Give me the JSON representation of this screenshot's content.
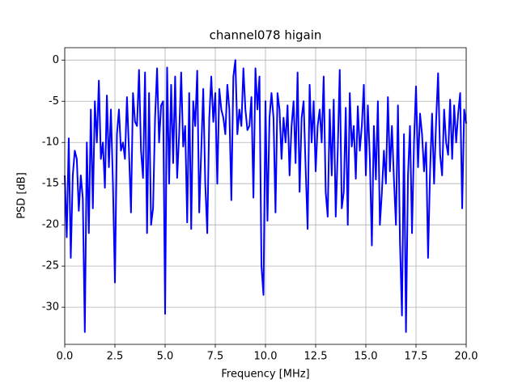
{
  "chart_data": {
    "type": "line",
    "title": "channel078 higain",
    "xlabel": "Frequency [MHz]",
    "ylabel": "PSD [dB]",
    "x": [
      0.0,
      0.1,
      0.2,
      0.3,
      0.4,
      0.5,
      0.6,
      0.7,
      0.8,
      0.9,
      1.0,
      1.1,
      1.2,
      1.3,
      1.4,
      1.5,
      1.6,
      1.7,
      1.8,
      1.9,
      2.0,
      2.1,
      2.2,
      2.3,
      2.4,
      2.5,
      2.6,
      2.7,
      2.8,
      2.9,
      3.0,
      3.1,
      3.2,
      3.3,
      3.4,
      3.5,
      3.6,
      3.7,
      3.8,
      3.9,
      4.0,
      4.1,
      4.2,
      4.3,
      4.4,
      4.5,
      4.6,
      4.7,
      4.8,
      4.9,
      5.0,
      5.1,
      5.2,
      5.3,
      5.4,
      5.5,
      5.6,
      5.7,
      5.8,
      5.9,
      6.0,
      6.1,
      6.2,
      6.3,
      6.4,
      6.5,
      6.6,
      6.7,
      6.8,
      6.9,
      7.0,
      7.1,
      7.2,
      7.3,
      7.4,
      7.5,
      7.6,
      7.7,
      7.8,
      7.9,
      8.0,
      8.1,
      8.2,
      8.3,
      8.4,
      8.5,
      8.6,
      8.7,
      8.8,
      8.9,
      9.0,
      9.1,
      9.2,
      9.3,
      9.4,
      9.5,
      9.6,
      9.7,
      9.8,
      9.9,
      10.0,
      10.1,
      10.2,
      10.3,
      10.4,
      10.5,
      10.6,
      10.7,
      10.8,
      10.9,
      11.0,
      11.1,
      11.2,
      11.3,
      11.4,
      11.5,
      11.6,
      11.7,
      11.8,
      11.9,
      12.0,
      12.1,
      12.2,
      12.3,
      12.4,
      12.5,
      12.6,
      12.7,
      12.8,
      12.9,
      13.0,
      13.1,
      13.2,
      13.3,
      13.4,
      13.5,
      13.6,
      13.7,
      13.8,
      13.9,
      14.0,
      14.1,
      14.2,
      14.3,
      14.4,
      14.5,
      14.6,
      14.7,
      14.8,
      14.9,
      15.0,
      15.1,
      15.2,
      15.3,
      15.4,
      15.5,
      15.6,
      15.7,
      15.8,
      15.9,
      16.0,
      16.1,
      16.2,
      16.3,
      16.4,
      16.5,
      16.6,
      16.7,
      16.8,
      16.9,
      17.0,
      17.1,
      17.2,
      17.3,
      17.4,
      17.5,
      17.6,
      17.7,
      17.8,
      17.9,
      18.0,
      18.1,
      18.2,
      18.3,
      18.4,
      18.5,
      18.6,
      18.7,
      18.8,
      18.9,
      19.0,
      19.1,
      19.2,
      19.3,
      19.4,
      19.5,
      19.6,
      19.7,
      19.8,
      19.9,
      20.0
    ],
    "series": [
      {
        "color": "#0000ff",
        "values": [
          -14,
          -21.5,
          -9.5,
          -24,
          -14,
          -11,
          -12,
          -18.3,
          -14,
          -16.8,
          -33,
          -10,
          -21,
          -6,
          -18,
          -5,
          -10,
          -2.5,
          -12,
          -10,
          -15.5,
          -4.3,
          -13,
          -6,
          -15,
          -27,
          -9,
          -6,
          -11,
          -10,
          -12,
          -4.5,
          -11,
          -18.5,
          -4,
          -7.5,
          -8,
          -1.2,
          -11,
          -14.3,
          -1.5,
          -21,
          -4,
          -20,
          -18,
          -7,
          -1,
          -10,
          -5.5,
          -5,
          -30.8,
          -0.9,
          -15,
          -3,
          -12.5,
          -2,
          -14.3,
          -9,
          -1.5,
          -10.5,
          -8,
          -19.7,
          -4,
          -20.5,
          -5,
          -8,
          -1.3,
          -18.5,
          -11,
          -3.5,
          -15,
          -21,
          -7,
          -2,
          -7.5,
          -4,
          -15,
          -3.5,
          -6,
          -7,
          -9,
          -3,
          -6,
          -17,
          -2,
          0,
          -9,
          -6,
          -8,
          -1,
          -6,
          -8.5,
          -8,
          -4.5,
          -16.7,
          -1,
          -6,
          -2,
          -25,
          -28.5,
          -5,
          -19.5,
          -7,
          -4,
          -7,
          -18.5,
          -4,
          -6,
          -12,
          -7,
          -10,
          -5.5,
          -14,
          -8,
          -5,
          -12.5,
          -1.5,
          -16,
          -7,
          -5,
          -13,
          -20.5,
          -3,
          -10,
          -5,
          -13.5,
          -8,
          -6,
          -10,
          -2,
          -16,
          -19,
          -6,
          -14,
          -4.8,
          -19,
          -11,
          -1.2,
          -18,
          -16,
          -5.8,
          -20,
          -4,
          -10.5,
          -8,
          -14.4,
          -5.6,
          -11,
          -8,
          -3,
          -14,
          -5.5,
          -12,
          -22.5,
          -8,
          -14.5,
          -5,
          -20,
          -16,
          -11,
          -15,
          -4.5,
          -13.5,
          -8,
          -14.5,
          -20,
          -5.5,
          -22,
          -31,
          -9,
          -33,
          -14,
          -8,
          -21,
          -10,
          -3.2,
          -13,
          -6.5,
          -9,
          -13.5,
          -10,
          -24,
          -13.5,
          -6.5,
          -15,
          -7.5,
          -1.6,
          -11.5,
          -14,
          -6,
          -10,
          -11.5,
          -4.8,
          -12,
          -5.5,
          -10,
          -6.5,
          -4,
          -18,
          -6,
          -7.7
        ]
      }
    ],
    "xlim": [
      0,
      20
    ],
    "xticks": [
      {
        "value": 0,
        "label": "0.0"
      },
      2.5,
      {
        "value": 5,
        "label": "5.0"
      },
      7.5,
      {
        "value": 10,
        "label": "10.0"
      },
      12.5,
      {
        "value": 15,
        "label": "15.0"
      },
      17.5,
      {
        "value": 20,
        "label": "20.0"
      }
    ],
    "ylim": [
      -34.5,
      1.5
    ],
    "yticks": [
      -30,
      -25,
      -20,
      -15,
      -10,
      -5,
      0
    ],
    "grid": true
  }
}
